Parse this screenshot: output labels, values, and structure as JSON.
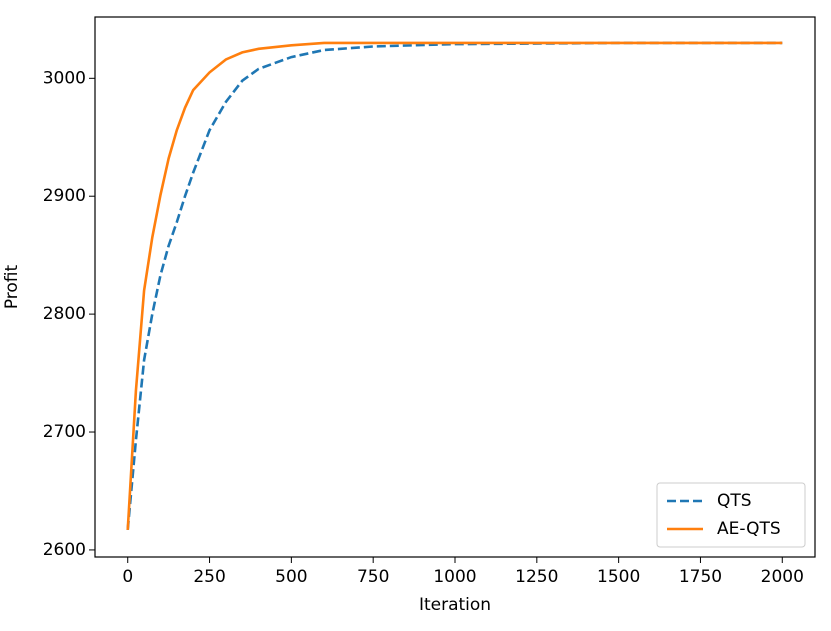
{
  "chart_data": {
    "type": "line",
    "xlabel": "Iteration",
    "ylabel": "Profit",
    "x": [
      0,
      25,
      50,
      75,
      100,
      125,
      150,
      175,
      200,
      250,
      300,
      350,
      400,
      500,
      600,
      750,
      1000,
      1500,
      2000
    ],
    "series": [
      {
        "name": "QTS",
        "color": "#1f77b4",
        "dash": true,
        "values": [
          2617,
          2693,
          2761,
          2800,
          2833,
          2858,
          2878,
          2900,
          2920,
          2956,
          2980,
          2998,
          3008,
          3018,
          3024,
          3027,
          3029,
          3030,
          3030
        ]
      },
      {
        "name": "AE-QTS",
        "color": "#ff7f0e",
        "dash": false,
        "values": [
          2617,
          2735,
          2820,
          2865,
          2901,
          2932,
          2956,
          2975,
          2990,
          3005,
          3016,
          3022,
          3025,
          3028,
          3030,
          3030,
          3030,
          3030,
          3030
        ]
      }
    ],
    "xlim": [
      -100,
      2100
    ],
    "xticks": [
      0,
      250,
      500,
      750,
      1000,
      1250,
      1500,
      1750,
      2000
    ],
    "ylim": [
      2594,
      3052
    ],
    "yticks": [
      2600,
      2700,
      2800,
      2900,
      3000
    ],
    "legend": "lower right"
  }
}
